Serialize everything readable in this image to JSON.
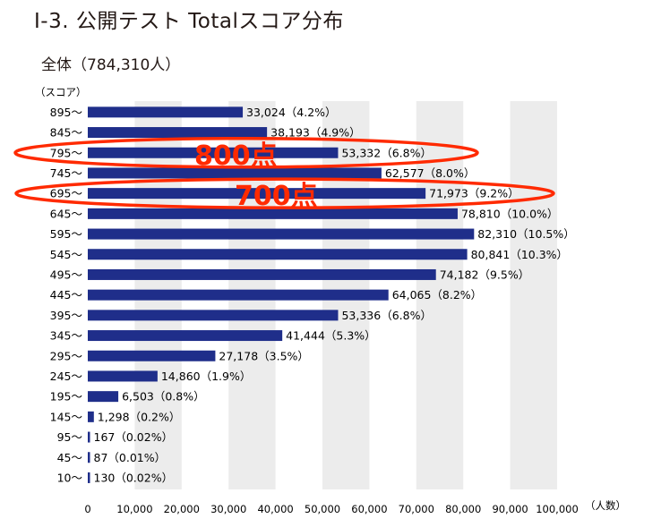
{
  "header": {
    "title": "Ⅰ-3. 公開テスト Totalスコア分布",
    "subtitle": "全体（784,310人）"
  },
  "annotations": [
    {
      "text": "800点",
      "row_index": 2,
      "color": "#ff2a00"
    },
    {
      "text": "700点",
      "row_index": 4,
      "color": "#ff2a00"
    }
  ],
  "chart_data": {
    "type": "bar",
    "orientation": "horizontal",
    "title": "Ⅰ-3. 公開テスト Totalスコア分布",
    "subtitle": "全体（784,310人）",
    "ylabel": "（スコア）",
    "xlabel": "（人数）",
    "xlim": [
      0,
      100000
    ],
    "xticks": [
      0,
      10000,
      20000,
      30000,
      40000,
      50000,
      60000,
      70000,
      80000,
      90000,
      100000
    ],
    "xtick_labels": [
      "0",
      "10,000",
      "20,000",
      "30,000",
      "40,000",
      "50,000",
      "60,000",
      "70,000",
      "80,000",
      "90,000",
      "100,000"
    ],
    "bar_color": "#1f2e8a",
    "categories": [
      "895～",
      "845～",
      "795～",
      "745～",
      "695～",
      "645～",
      "595～",
      "545～",
      "495～",
      "445～",
      "395～",
      "345～",
      "295～",
      "245～",
      "195～",
      "145～",
      "95～",
      "45～",
      "10～"
    ],
    "values": [
      33024,
      38193,
      53332,
      62577,
      71973,
      78810,
      82310,
      80841,
      74182,
      64065,
      53336,
      41444,
      27178,
      14860,
      6503,
      1298,
      167,
      87,
      130
    ],
    "data_labels": [
      "33,024（4.2%）",
      "38,193（4.9%）",
      "53,332（6.8%）",
      "62,577（8.0%）",
      "71,973（9.2%）",
      "78,810（10.0%）",
      "82,310（10.5%）",
      "80,841（10.3%）",
      "74,182（9.5%）",
      "64,065（8.2%）",
      "53,336（6.8%）",
      "41,444（5.3%）",
      "27,178（3.5%）",
      "14,860（1.9%）",
      "6,503（0.8%）",
      "1,298（0.2%）",
      "167（0.02%）",
      "87（0.01%）",
      "130（0.02%）"
    ]
  }
}
